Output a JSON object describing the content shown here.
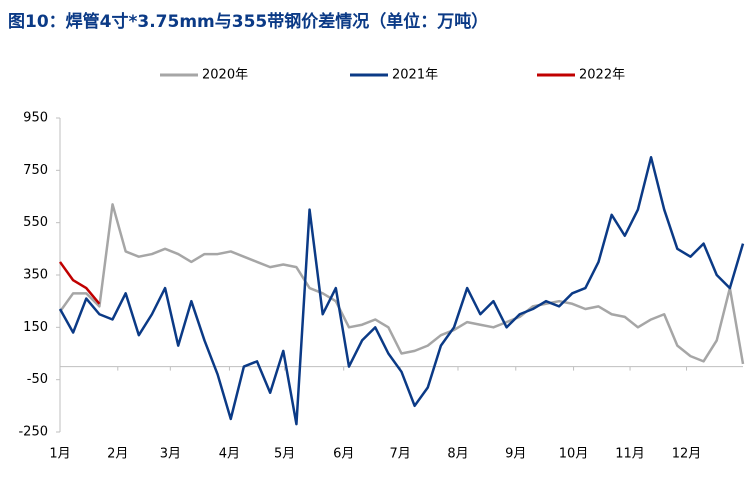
{
  "chart_data": {
    "type": "line",
    "title": "图10：焊管4寸*3.75mm与355带钢价差情况（单位：万吨）",
    "xlim": [
      0,
      52
    ],
    "xticks": [
      {
        "value": 0,
        "label": "1月"
      },
      {
        "value": 4.4,
        "label": "2月"
      },
      {
        "value": 8.4,
        "label": "3月"
      },
      {
        "value": 12.9,
        "label": "4月"
      },
      {
        "value": 17.1,
        "label": "5月"
      },
      {
        "value": 21.6,
        "label": "6月"
      },
      {
        "value": 25.9,
        "label": "7月"
      },
      {
        "value": 30.3,
        "label": "8月"
      },
      {
        "value": 34.7,
        "label": "9月"
      },
      {
        "value": 39.1,
        "label": "10月"
      },
      {
        "value": 43.4,
        "label": "11月"
      },
      {
        "value": 47.7,
        "label": "12月"
      }
    ],
    "ylim": [
      -250,
      950
    ],
    "yticks": [
      950,
      750,
      550,
      350,
      150,
      -50,
      -250
    ],
    "legend": "top",
    "series": [
      {
        "name": "2020年",
        "color": "#a6a6a6",
        "values": [
          210,
          280,
          280,
          230,
          620,
          440,
          420,
          430,
          450,
          430,
          400,
          430,
          430,
          440,
          420,
          400,
          380,
          390,
          380,
          300,
          280,
          250,
          150,
          160,
          180,
          150,
          50,
          60,
          80,
          120,
          140,
          170,
          160,
          150,
          170,
          190,
          230,
          240,
          250,
          240,
          220,
          230,
          200,
          190,
          150,
          180,
          200,
          80,
          40,
          20,
          100,
          300,
          10
        ]
      },
      {
        "name": "2021年",
        "color": "#0b3a86",
        "values": [
          220,
          130,
          260,
          200,
          180,
          280,
          120,
          200,
          300,
          80,
          250,
          100,
          -30,
          -200,
          0,
          20,
          -100,
          60,
          -220,
          600,
          200,
          300,
          0,
          100,
          150,
          50,
          -20,
          -150,
          -80,
          80,
          150,
          300,
          200,
          250,
          150,
          200,
          220,
          250,
          230,
          280,
          300,
          400,
          580,
          500,
          600,
          800,
          600,
          450,
          420,
          470,
          350,
          300,
          470
        ]
      },
      {
        "name": "2022年",
        "color": "#c00000",
        "values": [
          400,
          330,
          300,
          240,
          null,
          null,
          null,
          null,
          null,
          null,
          null,
          null,
          null,
          null,
          null,
          null,
          null,
          null,
          null,
          null,
          null,
          null,
          null,
          null,
          null,
          null,
          null,
          null,
          null,
          null,
          null,
          null,
          null,
          null,
          null,
          null,
          null,
          null,
          null,
          null,
          null,
          null,
          null,
          null,
          null,
          null,
          null,
          null,
          null,
          null,
          null,
          null,
          null
        ]
      }
    ]
  }
}
